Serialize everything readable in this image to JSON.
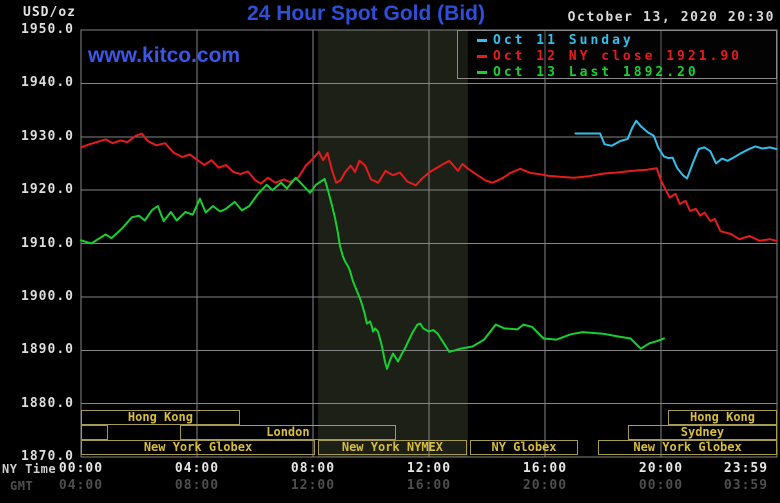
{
  "header": {
    "unit_label": "USD/oz",
    "title": "24 Hour Spot Gold (Bid)",
    "datetime": "October 13, 2020 20:30",
    "watermark": "www.kitco.com"
  },
  "colors": {
    "background": "#000000",
    "title": "#2e4fd9",
    "watermark": "#3a57e8",
    "datetime": "#d9d9d9",
    "grid": "#858585",
    "band": "#1c2017",
    "axis_text": "#e6e6e6",
    "gmt_text": "#4e4e4e",
    "session_border": "#a89a4e",
    "session_text": "#d9be3a",
    "cyan": "#33bfeb",
    "red": "#e51c1c",
    "green": "#17cf31"
  },
  "legend": [
    {
      "label": "Oct 11 Sunday",
      "color": "#33bfeb"
    },
    {
      "label": "Oct 12 NY close 1921.90",
      "color": "#e51c1c"
    },
    {
      "label": "Oct 13 Last 1892.20",
      "color": "#17cf31"
    }
  ],
  "axes": {
    "y_ticks": [
      "1950.0",
      "1940.0",
      "1930.0",
      "1920.0",
      "1910.0",
      "1900.0",
      "1890.0",
      "1880.0",
      "1870.0"
    ],
    "x_row1_label": "NY Time",
    "x_row2_label": "GMT",
    "x_row1_ticks": [
      "00:00",
      "04:00",
      "08:00",
      "12:00",
      "16:00",
      "20:00",
      "23:59"
    ],
    "x_row2_ticks": [
      "04:00",
      "08:00",
      "12:00",
      "16:00",
      "20:00",
      "00:00",
      "03:59"
    ]
  },
  "sessions": {
    "rows": [
      {
        "boxes": [
          {
            "label": "Hong Kong",
            "start": 0,
            "end": 5.48
          },
          {
            "label": "Hong Kong",
            "start": 20.24,
            "end": 24
          }
        ]
      },
      {
        "boxes": [
          {
            "label": "",
            "start": 0,
            "end": 0.93
          },
          {
            "label": "London",
            "start": 3.41,
            "end": 10.86
          },
          {
            "label": "Sydney",
            "start": 18.86,
            "end": 24
          }
        ]
      },
      {
        "boxes": [
          {
            "label": "New York Globex",
            "start": 0,
            "end": 8.07
          },
          {
            "label": "New York NYMEX",
            "start": 8.17,
            "end": 13.31
          },
          {
            "label": "NY Globex",
            "start": 13.41,
            "end": 17.14
          },
          {
            "label": "New York Globex",
            "start": 17.83,
            "end": 24
          }
        ]
      }
    ]
  },
  "chart_data": {
    "type": "line",
    "title": "24 Hour Spot Gold (Bid)",
    "xlabel": "NY Time (hours)",
    "ylabel": "USD/oz",
    "xlim": [
      0,
      24
    ],
    "ylim": [
      1870,
      1950
    ],
    "y_tick_step": 10,
    "grid": true,
    "legend_position": "top-right",
    "x_ticks_hours": [
      0,
      4,
      8,
      12,
      16,
      20,
      23.983
    ],
    "highlight_band_hours": [
      8.17,
      13.34
    ],
    "series": [
      {
        "name": "Oct 11 Sunday",
        "color": "#33bfeb",
        "points": [
          [
            17.05,
            1930.6
          ],
          [
            17.9,
            1930.6
          ],
          [
            18.05,
            1928.6
          ],
          [
            18.3,
            1928.3
          ],
          [
            18.6,
            1929.2
          ],
          [
            18.85,
            1929.6
          ],
          [
            19.0,
            1931.6
          ],
          [
            19.15,
            1933.0
          ],
          [
            19.3,
            1932.0
          ],
          [
            19.55,
            1930.8
          ],
          [
            19.75,
            1930.2
          ],
          [
            19.9,
            1928.0
          ],
          [
            20.1,
            1926.3
          ],
          [
            20.25,
            1926.0
          ],
          [
            20.4,
            1926.1
          ],
          [
            20.55,
            1924.2
          ],
          [
            20.75,
            1922.8
          ],
          [
            20.9,
            1922.2
          ],
          [
            21.1,
            1925.1
          ],
          [
            21.3,
            1927.7
          ],
          [
            21.5,
            1928.0
          ],
          [
            21.7,
            1927.3
          ],
          [
            21.9,
            1925.0
          ],
          [
            22.1,
            1925.9
          ],
          [
            22.3,
            1925.5
          ],
          [
            22.5,
            1926.1
          ],
          [
            22.75,
            1926.9
          ],
          [
            23.0,
            1927.6
          ],
          [
            23.25,
            1928.2
          ],
          [
            23.5,
            1927.8
          ],
          [
            23.75,
            1928.0
          ],
          [
            23.98,
            1927.7
          ]
        ]
      },
      {
        "name": "Oct 12 NY close 1921.90",
        "color": "#e51c1c",
        "points": [
          [
            0,
            1928.0
          ],
          [
            0.3,
            1928.6
          ],
          [
            0.85,
            1929.5
          ],
          [
            1.1,
            1928.8
          ],
          [
            1.35,
            1929.3
          ],
          [
            1.6,
            1929.0
          ],
          [
            1.9,
            1930.2
          ],
          [
            2.1,
            1930.6
          ],
          [
            2.3,
            1929.2
          ],
          [
            2.6,
            1928.4
          ],
          [
            2.9,
            1928.8
          ],
          [
            3.2,
            1927.0
          ],
          [
            3.5,
            1926.2
          ],
          [
            3.75,
            1926.7
          ],
          [
            4.0,
            1925.7
          ],
          [
            4.25,
            1924.7
          ],
          [
            4.5,
            1925.6
          ],
          [
            4.75,
            1924.2
          ],
          [
            5.0,
            1924.7
          ],
          [
            5.25,
            1923.4
          ],
          [
            5.5,
            1923.0
          ],
          [
            5.75,
            1923.5
          ],
          [
            6.0,
            1921.9
          ],
          [
            6.2,
            1921.2
          ],
          [
            6.45,
            1922.3
          ],
          [
            6.7,
            1921.4
          ],
          [
            7.0,
            1922.0
          ],
          [
            7.2,
            1921.5
          ],
          [
            7.5,
            1922.4
          ],
          [
            7.75,
            1924.6
          ],
          [
            8.0,
            1925.9
          ],
          [
            8.2,
            1927.2
          ],
          [
            8.35,
            1925.6
          ],
          [
            8.5,
            1927.0
          ],
          [
            8.65,
            1923.8
          ],
          [
            8.8,
            1921.4
          ],
          [
            8.95,
            1921.8
          ],
          [
            9.1,
            1923.3
          ],
          [
            9.3,
            1924.6
          ],
          [
            9.45,
            1923.4
          ],
          [
            9.6,
            1925.5
          ],
          [
            9.8,
            1924.6
          ],
          [
            10.0,
            1922.0
          ],
          [
            10.25,
            1921.4
          ],
          [
            10.5,
            1923.6
          ],
          [
            10.75,
            1922.8
          ],
          [
            11.0,
            1923.3
          ],
          [
            11.25,
            1921.6
          ],
          [
            11.55,
            1920.9
          ],
          [
            11.75,
            1922.1
          ],
          [
            12.0,
            1923.3
          ],
          [
            12.4,
            1924.6
          ],
          [
            12.7,
            1925.5
          ],
          [
            13.0,
            1923.6
          ],
          [
            13.15,
            1924.9
          ],
          [
            13.35,
            1924.0
          ],
          [
            13.7,
            1922.7
          ],
          [
            13.95,
            1921.8
          ],
          [
            14.2,
            1921.4
          ],
          [
            14.55,
            1922.3
          ],
          [
            14.8,
            1923.2
          ],
          [
            15.15,
            1924.0
          ],
          [
            15.5,
            1923.2
          ],
          [
            15.8,
            1923.0
          ],
          [
            16.1,
            1922.7
          ],
          [
            16.5,
            1922.5
          ],
          [
            17.0,
            1922.3
          ],
          [
            17.5,
            1922.6
          ],
          [
            18.0,
            1923.1
          ],
          [
            18.5,
            1923.3
          ],
          [
            19.0,
            1923.6
          ],
          [
            19.5,
            1923.8
          ],
          [
            19.85,
            1924.1
          ],
          [
            20.0,
            1921.8
          ],
          [
            20.15,
            1920.2
          ],
          [
            20.3,
            1918.6
          ],
          [
            20.5,
            1919.3
          ],
          [
            20.65,
            1917.4
          ],
          [
            20.85,
            1918.0
          ],
          [
            21.0,
            1916.1
          ],
          [
            21.2,
            1916.5
          ],
          [
            21.35,
            1915.2
          ],
          [
            21.5,
            1915.8
          ],
          [
            21.7,
            1914.2
          ],
          [
            21.85,
            1914.6
          ],
          [
            22.05,
            1912.3
          ],
          [
            22.4,
            1911.8
          ],
          [
            22.7,
            1910.8
          ],
          [
            23.05,
            1911.4
          ],
          [
            23.4,
            1910.5
          ],
          [
            23.75,
            1910.8
          ],
          [
            23.98,
            1910.5
          ]
        ]
      },
      {
        "name": "Oct 13 Last 1892.20",
        "color": "#17cf31",
        "points": [
          [
            0,
            1910.6
          ],
          [
            0.35,
            1910.0
          ],
          [
            0.85,
            1911.7
          ],
          [
            1.05,
            1911.0
          ],
          [
            1.45,
            1913.0
          ],
          [
            1.75,
            1914.9
          ],
          [
            2.0,
            1915.2
          ],
          [
            2.2,
            1914.3
          ],
          [
            2.45,
            1916.3
          ],
          [
            2.65,
            1917.0
          ],
          [
            2.85,
            1914.2
          ],
          [
            3.1,
            1915.9
          ],
          [
            3.3,
            1914.3
          ],
          [
            3.6,
            1915.9
          ],
          [
            3.85,
            1915.4
          ],
          [
            4.1,
            1918.4
          ],
          [
            4.3,
            1915.8
          ],
          [
            4.55,
            1917.0
          ],
          [
            4.8,
            1916.0
          ],
          [
            5.0,
            1916.5
          ],
          [
            5.3,
            1917.8
          ],
          [
            5.55,
            1916.2
          ],
          [
            5.8,
            1917.0
          ],
          [
            6.1,
            1919.3
          ],
          [
            6.4,
            1921.0
          ],
          [
            6.6,
            1920.0
          ],
          [
            6.9,
            1921.4
          ],
          [
            7.1,
            1920.3
          ],
          [
            7.4,
            1922.3
          ],
          [
            7.6,
            1921.2
          ],
          [
            7.9,
            1919.5
          ],
          [
            8.1,
            1921.0
          ],
          [
            8.4,
            1922.1
          ],
          [
            8.52,
            1919.9
          ],
          [
            8.66,
            1917.0
          ],
          [
            8.76,
            1914.8
          ],
          [
            8.86,
            1912.0
          ],
          [
            8.93,
            1909.5
          ],
          [
            9.03,
            1907.6
          ],
          [
            9.1,
            1906.7
          ],
          [
            9.21,
            1905.7
          ],
          [
            9.28,
            1904.8
          ],
          [
            9.38,
            1902.9
          ],
          [
            9.52,
            1901.0
          ],
          [
            9.62,
            1899.7
          ],
          [
            9.69,
            1898.6
          ],
          [
            9.79,
            1896.7
          ],
          [
            9.86,
            1895.0
          ],
          [
            9.97,
            1895.4
          ],
          [
            10.03,
            1894.4
          ],
          [
            10.07,
            1893.5
          ],
          [
            10.14,
            1894.1
          ],
          [
            10.24,
            1893.5
          ],
          [
            10.38,
            1890.7
          ],
          [
            10.48,
            1887.9
          ],
          [
            10.55,
            1886.5
          ],
          [
            10.66,
            1888.2
          ],
          [
            10.76,
            1889.4
          ],
          [
            10.83,
            1888.8
          ],
          [
            10.93,
            1887.9
          ],
          [
            11.07,
            1889.4
          ],
          [
            11.17,
            1890.3
          ],
          [
            11.28,
            1891.6
          ],
          [
            11.45,
            1893.5
          ],
          [
            11.6,
            1894.8
          ],
          [
            11.7,
            1895.0
          ],
          [
            11.8,
            1894.1
          ],
          [
            12.0,
            1893.5
          ],
          [
            12.15,
            1893.8
          ],
          [
            12.3,
            1893.1
          ],
          [
            12.7,
            1889.7
          ],
          [
            13.1,
            1890.3
          ],
          [
            13.5,
            1890.7
          ],
          [
            13.9,
            1892.0
          ],
          [
            14.3,
            1894.8
          ],
          [
            14.6,
            1894.1
          ],
          [
            15.05,
            1893.9
          ],
          [
            15.25,
            1894.8
          ],
          [
            15.55,
            1894.4
          ],
          [
            15.95,
            1892.2
          ],
          [
            16.4,
            1892.0
          ],
          [
            16.9,
            1893.0
          ],
          [
            17.3,
            1893.4
          ],
          [
            18.0,
            1893.1
          ],
          [
            18.5,
            1892.6
          ],
          [
            18.95,
            1892.2
          ],
          [
            19.3,
            1890.3
          ],
          [
            19.6,
            1891.3
          ],
          [
            19.8,
            1891.6
          ],
          [
            20.1,
            1892.2
          ]
        ]
      }
    ]
  }
}
